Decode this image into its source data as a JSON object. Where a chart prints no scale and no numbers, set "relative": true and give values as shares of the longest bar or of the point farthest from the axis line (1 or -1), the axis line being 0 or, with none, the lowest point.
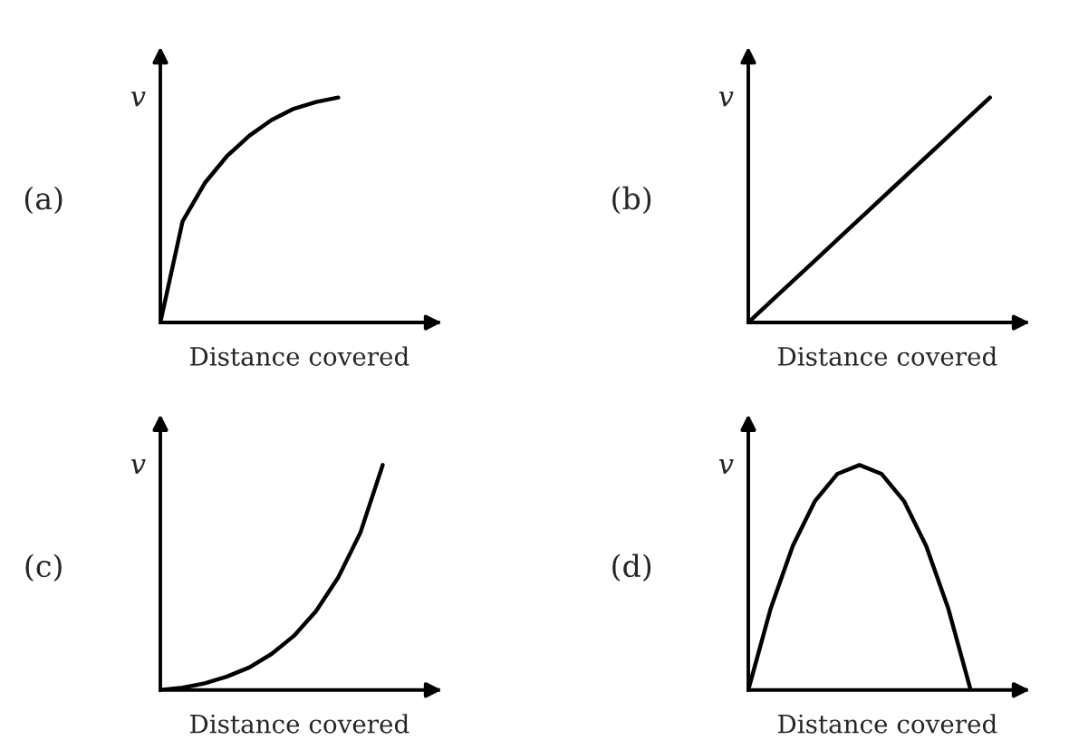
{
  "chart_data": [
    {
      "type": "line",
      "relative": true,
      "xlabel": "Distance covered",
      "ylabel": "v",
      "annotations": [
        "(a)"
      ],
      "categories": [
        null,
        null,
        null,
        null,
        null,
        null,
        null,
        null,
        null,
        null,
        null,
        null,
        null
      ],
      "series": [
        {
          "color": "#000000",
          "values": [
            0,
            0.45,
            0.62,
            0.74,
            0.83,
            0.9,
            0.95,
            0.98,
            1.0,
            null,
            null,
            null,
            null
          ]
        }
      ]
    },
    {
      "type": "line",
      "relative": true,
      "xlabel": "Distance covered",
      "ylabel": "v",
      "annotations": [
        "(b)"
      ],
      "categories": [
        null,
        null,
        null,
        null,
        null,
        null,
        null,
        null,
        null,
        null,
        null,
        null
      ],
      "series": [
        {
          "color": "#000000",
          "values": [
            0,
            0.1,
            0.2,
            0.3,
            0.4,
            0.5,
            0.6,
            0.7,
            0.8,
            0.9,
            1.0,
            null
          ]
        }
      ]
    },
    {
      "type": "line",
      "relative": true,
      "xlabel": "Distance covered",
      "ylabel": "v",
      "annotations": [
        "(c)"
      ],
      "categories": [
        null,
        null,
        null,
        null,
        null,
        null,
        null,
        null,
        null,
        null,
        null,
        null,
        null
      ],
      "series": [
        {
          "color": "#000000",
          "values": [
            0,
            0.01,
            0.03,
            0.06,
            0.1,
            0.16,
            0.24,
            0.35,
            0.5,
            0.7,
            1.0,
            null,
            null
          ]
        }
      ]
    },
    {
      "type": "line",
      "relative": true,
      "xlabel": "Distance covered",
      "ylabel": "v",
      "annotations": [
        "(d)"
      ],
      "categories": [
        null,
        null,
        null,
        null,
        null,
        null,
        null,
        null,
        null,
        null,
        null,
        null,
        null
      ],
      "series": [
        {
          "color": "#000000",
          "values": [
            0,
            0.36,
            0.64,
            0.84,
            0.96,
            1.0,
            0.96,
            0.84,
            0.64,
            0.36,
            0,
            null,
            null
          ]
        }
      ]
    }
  ]
}
